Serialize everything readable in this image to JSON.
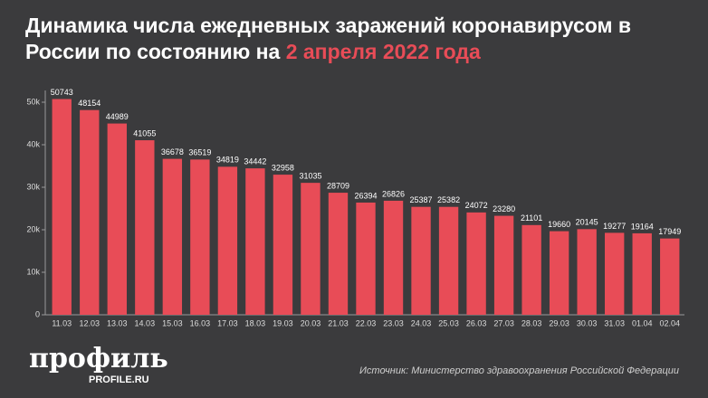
{
  "chart_data": {
    "type": "bar",
    "title": "Динамика числа ежедневных заражений коронавирусом в России по состоянию на",
    "title_highlight": "2 апреля 2022 года",
    "categories": [
      "11.03",
      "12.03",
      "13.03",
      "14.03",
      "15.03",
      "16.03",
      "17.03",
      "18.03",
      "19.03",
      "20.03",
      "21.03",
      "22.03",
      "23.03",
      "24.03",
      "25.03",
      "26.03",
      "27.03",
      "28.03",
      "29.03",
      "30.03",
      "31.03",
      "01.04",
      "02.04"
    ],
    "values": [
      50743,
      48154,
      44989,
      41055,
      36678,
      36519,
      34819,
      34442,
      32958,
      31035,
      28709,
      26394,
      26826,
      25387,
      25382,
      24072,
      23280,
      21101,
      19660,
      20145,
      19277,
      19164,
      17949
    ],
    "color": "#e84c57",
    "ylim": [
      0,
      52000
    ],
    "yticks": [
      0,
      {
        "value": 10000,
        "label": "10k"
      },
      {
        "value": 20000,
        "label": "20k"
      },
      {
        "value": 30000,
        "label": "30k"
      },
      {
        "value": 40000,
        "label": "40k"
      },
      {
        "value": 50000,
        "label": "50k"
      }
    ],
    "source": "Источник: Министерство здравоохранения Российской Федерации",
    "logo": "профиль",
    "logo_url": "PROFILE.RU"
  }
}
